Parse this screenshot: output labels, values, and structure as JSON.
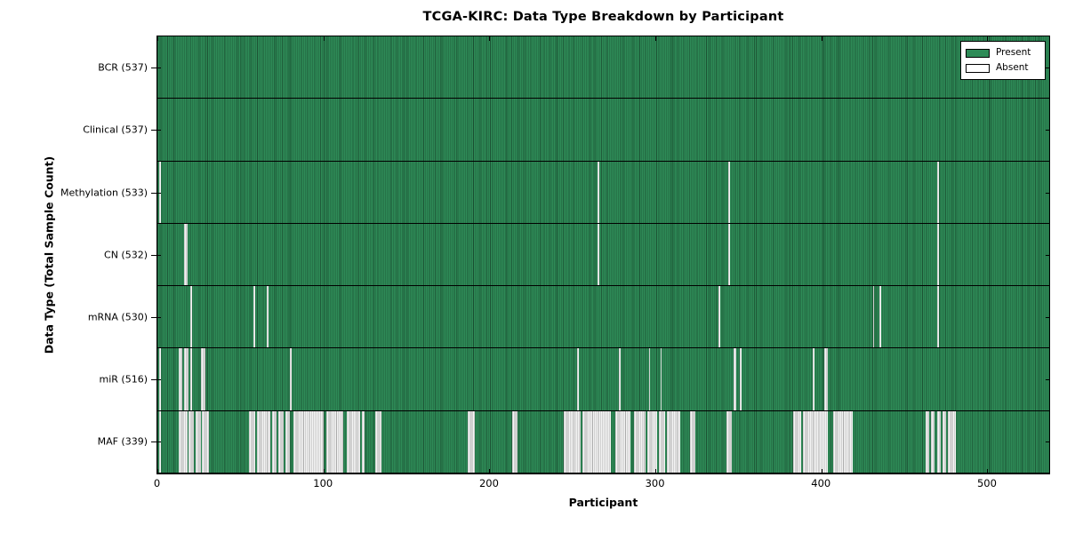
{
  "figure": {
    "title": "TCGA-KIRC: Data Type Breakdown by Participant",
    "xlabel": "Participant",
    "ylabel": "Data Type (Total Sample Count)"
  },
  "colors": {
    "present": "#2e8b57",
    "present_edge": "#1f5b39",
    "absent": "#ffffff",
    "absent_edge": "#ababab",
    "frame": "#000000"
  },
  "chart_data": {
    "type": "heatmap",
    "title": "TCGA-KIRC: Data Type Breakdown by Participant",
    "xlabel": "Participant",
    "ylabel": "Data Type (Total Sample Count)",
    "x_ticks": [
      0,
      100,
      200,
      300,
      400,
      500
    ],
    "xlim": [
      0,
      537
    ],
    "n_participants": 537,
    "grid": false,
    "legend_position": "upper right",
    "legend_entries": [
      {
        "label": "Present",
        "color": "#2e8b57"
      },
      {
        "label": "Absent",
        "color": "#ffffff"
      }
    ],
    "rows": [
      {
        "label": "BCR (537)",
        "data_type": "BCR",
        "present_count": 537,
        "absent_count": 0,
        "absent_ranges": []
      },
      {
        "label": "Clinical (537)",
        "data_type": "Clinical",
        "present_count": 537,
        "absent_count": 0,
        "absent_ranges": []
      },
      {
        "label": "Methylation (533)",
        "data_type": "Methylation",
        "present_count": 533,
        "absent_count": 4,
        "absent_ranges": [
          [
            1,
            2
          ],
          [
            265,
            266
          ],
          [
            344,
            345
          ],
          [
            470,
            471
          ]
        ]
      },
      {
        "label": "CN (532)",
        "data_type": "CN",
        "present_count": 532,
        "absent_count": 5,
        "absent_ranges": [
          [
            16,
            18
          ],
          [
            265,
            266
          ],
          [
            344,
            345
          ],
          [
            470,
            471
          ]
        ]
      },
      {
        "label": "mRNA (530)",
        "data_type": "mRNA",
        "present_count": 530,
        "absent_count": 7,
        "absent_ranges": [
          [
            20,
            21
          ],
          [
            58,
            59
          ],
          [
            66,
            67
          ],
          [
            338,
            339
          ],
          [
            431,
            432
          ],
          [
            435,
            436
          ],
          [
            470,
            471
          ]
        ]
      },
      {
        "label": "miR (516)",
        "data_type": "miR",
        "present_count": 516,
        "absent_count": 21,
        "absent_ranges": [
          [
            1,
            2
          ],
          [
            13,
            15
          ],
          [
            16,
            19
          ],
          [
            20,
            21
          ],
          [
            26,
            29
          ],
          [
            80,
            81
          ],
          [
            253,
            254
          ],
          [
            278,
            279
          ],
          [
            296,
            297
          ],
          [
            303,
            304
          ],
          [
            347,
            349
          ],
          [
            351,
            352
          ],
          [
            395,
            396
          ],
          [
            402,
            404
          ]
        ]
      },
      {
        "label": "MAF (339)",
        "data_type": "MAF",
        "present_count": 339,
        "absent_count": 198,
        "absent_ranges": [
          [
            1,
            2
          ],
          [
            13,
            18
          ],
          [
            19,
            22
          ],
          [
            23,
            26
          ],
          [
            27,
            31
          ],
          [
            55,
            59
          ],
          [
            60,
            68
          ],
          [
            69,
            72
          ],
          [
            73,
            76
          ],
          [
            77,
            80
          ],
          [
            82,
            100
          ],
          [
            102,
            112
          ],
          [
            114,
            122
          ],
          [
            123,
            125
          ],
          [
            131,
            135
          ],
          [
            187,
            191
          ],
          [
            214,
            217
          ],
          [
            245,
            255
          ],
          [
            256,
            273
          ],
          [
            276,
            285
          ],
          [
            287,
            294
          ],
          [
            295,
            301
          ],
          [
            302,
            306
          ],
          [
            307,
            315
          ],
          [
            321,
            324
          ],
          [
            343,
            346
          ],
          [
            383,
            388
          ],
          [
            389,
            404
          ],
          [
            407,
            419
          ],
          [
            463,
            465
          ],
          [
            466,
            468
          ],
          [
            470,
            472
          ],
          [
            473,
            475
          ],
          [
            476,
            481
          ]
        ]
      }
    ]
  }
}
